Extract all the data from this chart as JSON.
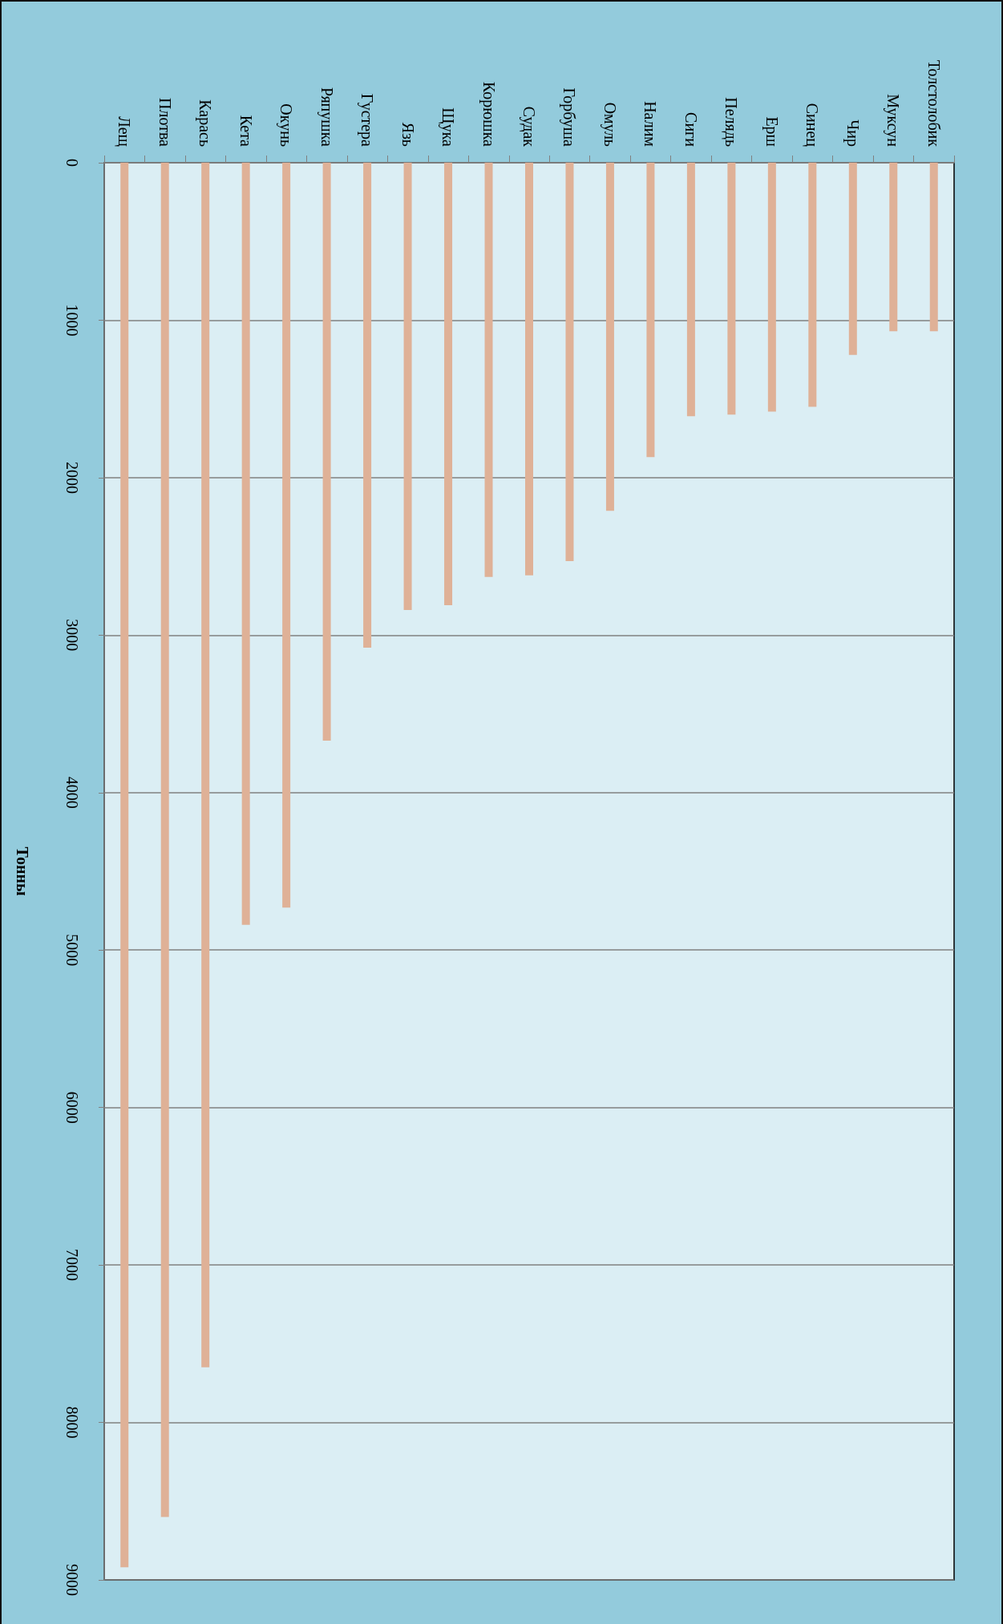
{
  "chart_data": {
    "type": "bar",
    "ylabel": "Тонны",
    "categories": [
      "Лещ",
      "Плотва",
      "Карась",
      "Кета",
      "Окунь",
      "Ряпушка",
      "Густера",
      "Язь",
      "Щука",
      "Корюшка",
      "Судак",
      "Горбуша",
      "Омуль",
      "Налим",
      "Сиги",
      "Пелядь",
      "Ерш",
      "Синец",
      "Чир",
      "Муксун",
      "Толстолобик"
    ],
    "values": [
      8920,
      8600,
      7650,
      4840,
      4730,
      3670,
      3080,
      2840,
      2810,
      2630,
      2620,
      2530,
      2210,
      1870,
      1610,
      1600,
      1580,
      1550,
      1220,
      1070,
      1070
    ],
    "color": "#dfb197",
    "ylim": [
      9000,
      0
    ],
    "yticks": [
      0,
      1000,
      2000,
      3000,
      4000,
      5000,
      6000,
      7000,
      8000,
      9000
    ],
    "grid": "y"
  }
}
